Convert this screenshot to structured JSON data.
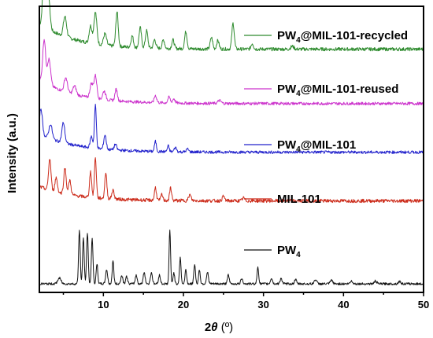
{
  "chart_data": {
    "type": "line",
    "xlabel_main": "2",
    "xlabel_theta": "θ",
    "xlabel_unit": " (º)",
    "ylabel": "Intensity (a.u.)",
    "xlim": [
      2,
      50
    ],
    "x_ticks": [
      10,
      20,
      30,
      40,
      50
    ],
    "y_ticks_shown": false,
    "legend": "inline labels to the right of each trace",
    "series": [
      {
        "name": "PW4@MIL-101-recycled",
        "label_main": "PW",
        "label_sub": "4",
        "label_rest": "@MIL-101-recycled",
        "color": "#2e8b2e",
        "baseline": 0.85,
        "base_amp": 0.09,
        "noise": 0.006,
        "peaks": [
          [
            2.6,
            0.2,
            0.18
          ],
          [
            3.1,
            0.13,
            0.2
          ],
          [
            5.2,
            0.07,
            0.2
          ],
          [
            8.4,
            0.06,
            0.18
          ],
          [
            9.0,
            0.11,
            0.18
          ],
          [
            10.2,
            0.04,
            0.18
          ],
          [
            11.7,
            0.12,
            0.15
          ],
          [
            13.6,
            0.04,
            0.15
          ],
          [
            14.6,
            0.07,
            0.15
          ],
          [
            15.4,
            0.06,
            0.15
          ],
          [
            16.4,
            0.03,
            0.15
          ],
          [
            17.5,
            0.03,
            0.15
          ],
          [
            18.7,
            0.03,
            0.15
          ],
          [
            20.3,
            0.06,
            0.15
          ],
          [
            23.5,
            0.04,
            0.15
          ],
          [
            24.3,
            0.03,
            0.15
          ],
          [
            26.2,
            0.09,
            0.15
          ],
          [
            28.6,
            0.02,
            0.15
          ],
          [
            33.6,
            0.01,
            0.2
          ]
        ]
      },
      {
        "name": "PW4@MIL-101-reused",
        "label_main": "PW",
        "label_sub": "4",
        "label_rest": "@MIL-101-reused",
        "color": "#cc33cc",
        "baseline": 0.66,
        "base_amp": 0.085,
        "noise": 0.005,
        "peaks": [
          [
            2.6,
            0.15,
            0.18
          ],
          [
            3.2,
            0.09,
            0.2
          ],
          [
            5.3,
            0.05,
            0.2
          ],
          [
            6.4,
            0.03,
            0.2
          ],
          [
            8.5,
            0.05,
            0.18
          ],
          [
            9.0,
            0.08,
            0.18
          ],
          [
            10.1,
            0.03,
            0.18
          ],
          [
            11.6,
            0.04,
            0.15
          ],
          [
            16.5,
            0.025,
            0.15
          ],
          [
            18.2,
            0.02,
            0.15
          ],
          [
            18.8,
            0.015,
            0.15
          ],
          [
            24.5,
            0.01,
            0.2
          ]
        ]
      },
      {
        "name": "PW4@MIL-101",
        "label_main": "PW",
        "label_sub": "4",
        "label_rest": "@MIL-101",
        "color": "#2222cc",
        "baseline": 0.49,
        "base_amp": 0.065,
        "noise": 0.005,
        "peaks": [
          [
            2.2,
            0.09,
            0.18
          ],
          [
            3.4,
            0.05,
            0.2
          ],
          [
            5.0,
            0.07,
            0.18
          ],
          [
            8.5,
            0.04,
            0.15
          ],
          [
            9.0,
            0.15,
            0.12
          ],
          [
            10.2,
            0.05,
            0.15
          ],
          [
            11.5,
            0.02,
            0.15
          ],
          [
            16.5,
            0.035,
            0.12
          ],
          [
            18.1,
            0.02,
            0.12
          ],
          [
            19.0,
            0.015,
            0.15
          ],
          [
            20.5,
            0.01,
            0.15
          ]
        ]
      },
      {
        "name": "MIL-101",
        "label_main": "MIL-101",
        "label_sub": "",
        "label_rest": "",
        "color": "#cc2b1a",
        "baseline": 0.32,
        "base_amp": 0.05,
        "noise": 0.006,
        "peaks": [
          [
            3.3,
            0.11,
            0.15
          ],
          [
            4.1,
            0.05,
            0.15
          ],
          [
            5.2,
            0.09,
            0.15
          ],
          [
            5.8,
            0.05,
            0.15
          ],
          [
            8.4,
            0.09,
            0.13
          ],
          [
            9.0,
            0.14,
            0.12
          ],
          [
            10.3,
            0.09,
            0.13
          ],
          [
            11.2,
            0.03,
            0.15
          ],
          [
            16.5,
            0.045,
            0.12
          ],
          [
            17.3,
            0.02,
            0.12
          ],
          [
            18.4,
            0.045,
            0.12
          ],
          [
            20.8,
            0.02,
            0.15
          ],
          [
            25.0,
            0.015,
            0.15
          ],
          [
            27.5,
            0.01,
            0.15
          ]
        ]
      },
      {
        "name": "PW4",
        "label_main": "PW",
        "label_sub": "4",
        "label_rest": "",
        "color": "#111111",
        "baseline": 0.03,
        "base_amp": 0.0,
        "noise": 0.004,
        "peaks": [
          [
            4.5,
            0.02,
            0.2
          ],
          [
            7.0,
            0.19,
            0.1
          ],
          [
            7.5,
            0.16,
            0.1
          ],
          [
            8.0,
            0.18,
            0.1
          ],
          [
            8.6,
            0.16,
            0.1
          ],
          [
            9.2,
            0.07,
            0.1
          ],
          [
            10.4,
            0.05,
            0.12
          ],
          [
            11.2,
            0.08,
            0.1
          ],
          [
            12.3,
            0.03,
            0.12
          ],
          [
            12.9,
            0.025,
            0.12
          ],
          [
            14.1,
            0.03,
            0.12
          ],
          [
            15.1,
            0.04,
            0.12
          ],
          [
            16.0,
            0.04,
            0.12
          ],
          [
            17.0,
            0.03,
            0.12
          ],
          [
            18.3,
            0.19,
            0.09
          ],
          [
            18.8,
            0.04,
            0.1
          ],
          [
            19.6,
            0.09,
            0.1
          ],
          [
            20.3,
            0.05,
            0.1
          ],
          [
            21.4,
            0.07,
            0.1
          ],
          [
            22.0,
            0.05,
            0.1
          ],
          [
            23.0,
            0.04,
            0.12
          ],
          [
            25.6,
            0.03,
            0.12
          ],
          [
            27.3,
            0.02,
            0.12
          ],
          [
            29.3,
            0.06,
            0.1
          ],
          [
            31.0,
            0.02,
            0.12
          ],
          [
            32.2,
            0.02,
            0.12
          ],
          [
            34.0,
            0.015,
            0.12
          ],
          [
            36.5,
            0.015,
            0.15
          ],
          [
            38.5,
            0.012,
            0.15
          ],
          [
            41.0,
            0.01,
            0.15
          ],
          [
            44.0,
            0.01,
            0.15
          ],
          [
            47.0,
            0.008,
            0.15
          ]
        ]
      }
    ]
  }
}
